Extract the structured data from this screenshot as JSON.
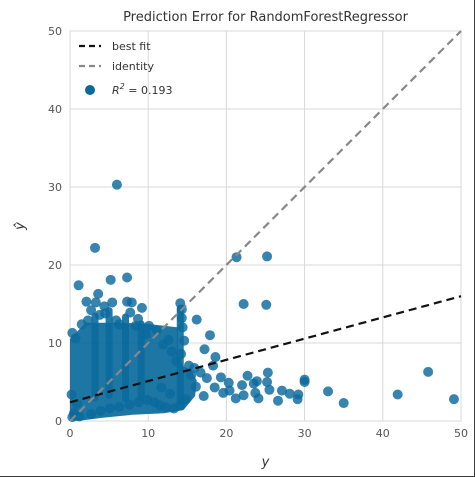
{
  "chart_data": {
    "type": "scatter",
    "title": "Prediction Error for RandomForestRegressor",
    "xlabel": "y",
    "ylabel": "ŷ",
    "xlim": [
      0,
      50
    ],
    "ylim": [
      0,
      50
    ],
    "xticks": [
      0,
      10,
      20,
      30,
      40,
      50
    ],
    "yticks": [
      0,
      10,
      20,
      30,
      40,
      50
    ],
    "grid": true,
    "legend_position": "top-left",
    "colors": {
      "points": "#0b6a9c",
      "best_fit": "#111111",
      "identity": "#888888",
      "grid": "#d9d9d9",
      "background": "#ffffff"
    },
    "series": [
      {
        "name": "best fit",
        "kind": "line",
        "style": "dashed",
        "x": [
          0,
          50
        ],
        "y": [
          2.4,
          16.0
        ]
      },
      {
        "name": "identity",
        "kind": "line",
        "style": "dashed",
        "x": [
          0,
          50
        ],
        "y": [
          0,
          50
        ]
      },
      {
        "name": "R² = 0.193",
        "kind": "scatter",
        "points": [
          [
            6,
            30.3
          ],
          [
            21.3,
            21.0
          ],
          [
            25.2,
            21.1
          ],
          [
            3.2,
            22.2
          ],
          [
            22.2,
            15.0
          ],
          [
            25.1,
            14.9
          ],
          [
            1.1,
            17.4
          ],
          [
            5.2,
            18.1
          ],
          [
            7.3,
            18.4
          ],
          [
            3.6,
            16.3
          ],
          [
            2.1,
            15.3
          ],
          [
            3.3,
            15.2
          ],
          [
            5.4,
            15.2
          ],
          [
            7.3,
            15.3
          ],
          [
            7.9,
            15.2
          ],
          [
            4.5,
            13.8
          ],
          [
            6.3,
            12.4
          ],
          [
            8.4,
            12.2
          ],
          [
            14.1,
            15.1
          ],
          [
            14.3,
            14.3
          ],
          [
            14.3,
            13.2
          ],
          [
            14.4,
            12.0
          ],
          [
            14.6,
            10.3
          ],
          [
            14.2,
            8.6
          ],
          [
            16.2,
            13.0
          ],
          [
            17.9,
            11.0
          ],
          [
            17.2,
            9.2
          ],
          [
            18.6,
            8.2
          ],
          [
            18.3,
            7.1
          ],
          [
            19.3,
            5.6
          ],
          [
            20.3,
            4.9
          ],
          [
            22.0,
            4.6
          ],
          [
            22.7,
            5.8
          ],
          [
            23.5,
            4.8
          ],
          [
            23.9,
            5.1
          ],
          [
            22.2,
            3.3
          ],
          [
            24.1,
            2.9
          ],
          [
            23.7,
            3.6
          ],
          [
            25.3,
            6.2
          ],
          [
            26.6,
            2.6
          ],
          [
            25.5,
            4.0
          ],
          [
            25.2,
            5.0
          ],
          [
            27.1,
            3.9
          ],
          [
            28.1,
            3.5
          ],
          [
            29.1,
            2.8
          ],
          [
            30.0,
            5.0
          ],
          [
            30.0,
            5.3
          ],
          [
            29.2,
            3.4
          ],
          [
            33.0,
            3.8
          ],
          [
            35.0,
            2.3
          ],
          [
            41.9,
            3.4
          ],
          [
            45.8,
            6.3
          ],
          [
            49.1,
            2.8
          ],
          [
            0.3,
            11.3
          ],
          [
            1.5,
            12.4
          ],
          [
            2.3,
            12.9
          ],
          [
            0.7,
            10.6
          ],
          [
            9.7,
            11.1
          ],
          [
            10.1,
            12.2
          ],
          [
            11.1,
            11.6
          ],
          [
            11.9,
            9.8
          ],
          [
            12.6,
            10.4
          ],
          [
            13.0,
            8.9
          ],
          [
            13.6,
            7.7
          ],
          [
            15.2,
            7.1
          ],
          [
            15.9,
            6.8
          ],
          [
            16.7,
            6.2
          ],
          [
            17.5,
            5.5
          ],
          [
            18.5,
            4.3
          ],
          [
            19.6,
            3.6
          ],
          [
            20.4,
            3.9
          ],
          [
            21.2,
            2.9
          ],
          [
            16.1,
            4.4
          ],
          [
            15.5,
            5.9
          ],
          [
            17.1,
            3.2
          ],
          [
            14.8,
            2.8
          ],
          [
            12.8,
            3.5
          ],
          [
            11.7,
            4.3
          ],
          [
            0.5,
            1.0
          ],
          [
            0.9,
            2.2
          ],
          [
            0.2,
            3.4
          ],
          [
            0.3,
            0.5
          ],
          [
            1.2,
            0.6
          ],
          [
            2.7,
            0.9
          ],
          [
            3.9,
            1.3
          ],
          [
            5.1,
            1.6
          ],
          [
            6.3,
            1.8
          ],
          [
            7.6,
            2.1
          ],
          [
            8.8,
            2.4
          ],
          [
            9.9,
            2.7
          ],
          [
            10.8,
            2.4
          ],
          [
            11.5,
            2.0
          ],
          [
            12.2,
            1.8
          ],
          [
            13.3,
            1.6
          ],
          [
            14.1,
            2.0
          ],
          [
            8.7,
            13.1
          ],
          [
            9.2,
            14.5
          ],
          [
            7.7,
            13.9
          ],
          [
            5.9,
            12.9
          ],
          [
            3.8,
            13.6
          ],
          [
            4.4,
            14.7
          ],
          [
            2.7,
            14.2
          ]
        ]
      }
    ],
    "legend": [
      {
        "label": "best fit",
        "marker": "dash-line",
        "color": "#111111"
      },
      {
        "label": "identity",
        "marker": "dash-line",
        "color": "#888888"
      },
      {
        "label_prefix": "R",
        "label_sup": "2",
        "label_suffix": " = 0.193",
        "marker": "dot",
        "color": "#0b6a9c"
      }
    ]
  }
}
